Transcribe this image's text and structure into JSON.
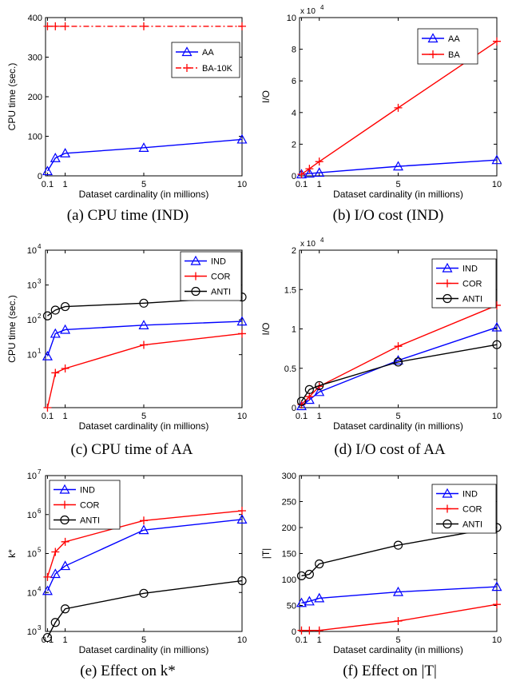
{
  "colors": {
    "AA": "#0000ff",
    "IND": "#0000ff",
    "BA": "#ff0000",
    "BA-10K": "#ff0000",
    "COR": "#ff0000",
    "ANTI": "#000000"
  },
  "chart_data": [
    {
      "id": "a",
      "type": "line",
      "caption": "(a) CPU time (IND)",
      "xlabel": "Dataset cardinality (in millions)",
      "ylabel": "CPU time (sec.)",
      "xlim": [
        0,
        10
      ],
      "ylim": [
        0,
        400
      ],
      "yscale": "linear",
      "xticks": [
        0.1,
        1,
        5,
        10
      ],
      "xtick_labels": [
        "0.1",
        "1",
        "5",
        "10"
      ],
      "yticks": [
        0,
        100,
        200,
        300,
        400
      ],
      "ytick_labels": [
        "0",
        "100",
        "200",
        "300",
        "400"
      ],
      "legend_position": "top-right",
      "series": [
        {
          "name": "AA",
          "color": "#0000ff",
          "marker": "triangle",
          "dash": "solid",
          "x": [
            0.1,
            0.5,
            1,
            5,
            10
          ],
          "y": [
            12,
            45,
            57,
            71,
            92
          ]
        },
        {
          "name": "BA-10K",
          "color": "#ff0000",
          "marker": "plus",
          "dash": "dashdot",
          "x": [
            0.1,
            0.5,
            1,
            5,
            10
          ],
          "y": [
            378,
            378,
            378,
            378,
            378
          ]
        }
      ]
    },
    {
      "id": "b",
      "type": "line",
      "caption": "(b) I/O cost (IND)",
      "xlabel": "Dataset cardinality (in millions)",
      "ylabel": "I/O",
      "exponent_label": "x 10",
      "exponent_power": "4",
      "xlim": [
        0,
        10
      ],
      "ylim": [
        0,
        10
      ],
      "yscale": "linear",
      "xticks": [
        0.1,
        1,
        5,
        10
      ],
      "xtick_labels": [
        "0.1",
        "1",
        "5",
        "10"
      ],
      "yticks": [
        0,
        2,
        4,
        6,
        8,
        10
      ],
      "ytick_labels": [
        "0",
        "2",
        "4",
        "6",
        "8",
        "10"
      ],
      "legend_position": "top-right",
      "series": [
        {
          "name": "AA",
          "color": "#0000ff",
          "marker": "triangle",
          "dash": "solid",
          "x": [
            0.1,
            0.5,
            1,
            5,
            10
          ],
          "y": [
            0.1,
            0.15,
            0.2,
            0.6,
            1.0
          ]
        },
        {
          "name": "BA",
          "color": "#ff0000",
          "marker": "plus",
          "dash": "solid",
          "x": [
            0.1,
            0.5,
            1,
            5,
            10
          ],
          "y": [
            0.1,
            0.45,
            0.9,
            4.3,
            8.5
          ]
        }
      ]
    },
    {
      "id": "c",
      "type": "line",
      "caption": "(c) CPU time of AA",
      "xlabel": "Dataset cardinality (in millions)",
      "ylabel": "CPU time (sec.)",
      "xlim": [
        0,
        10
      ],
      "ylim": [
        0.3,
        10000
      ],
      "yscale": "log",
      "xticks": [
        0.1,
        1,
        5,
        10
      ],
      "xtick_labels": [
        "0.1",
        "1",
        "5",
        "10"
      ],
      "yticks": [
        10,
        100,
        1000,
        10000
      ],
      "ytick_base": [
        "10",
        "10",
        "10",
        "10"
      ],
      "ytick_exp": [
        "1",
        "2",
        "3",
        "4"
      ],
      "legend_position": "top-right",
      "series": [
        {
          "name": "IND",
          "color": "#0000ff",
          "marker": "triangle",
          "dash": "solid",
          "x": [
            0.1,
            0.5,
            1,
            5,
            10
          ],
          "y": [
            9,
            40,
            52,
            70,
            90
          ]
        },
        {
          "name": "COR",
          "color": "#ff0000",
          "marker": "plus",
          "dash": "solid",
          "x": [
            0.1,
            0.5,
            1,
            5,
            10
          ],
          "y": [
            0.3,
            3,
            4,
            19,
            40
          ]
        },
        {
          "name": "ANTI",
          "color": "#000000",
          "marker": "circle",
          "dash": "solid",
          "x": [
            0.1,
            0.5,
            1,
            5,
            10
          ],
          "y": [
            130,
            190,
            240,
            300,
            450
          ]
        }
      ]
    },
    {
      "id": "d",
      "type": "line",
      "caption": "(d) I/O cost of AA",
      "xlabel": "Dataset cardinality (in millions)",
      "ylabel": "I/O",
      "exponent_label": "x 10",
      "exponent_power": "4",
      "xlim": [
        0,
        10
      ],
      "ylim": [
        0,
        2
      ],
      "yscale": "linear",
      "xticks": [
        0.1,
        1,
        5,
        10
      ],
      "xtick_labels": [
        "0.1",
        "1",
        "5",
        "10"
      ],
      "yticks": [
        0,
        0.5,
        1,
        1.5,
        2
      ],
      "ytick_labels": [
        "0",
        "0.5",
        "1",
        "1.5",
        "2"
      ],
      "legend_position": "top-right",
      "series": [
        {
          "name": "IND",
          "color": "#0000ff",
          "marker": "triangle",
          "dash": "solid",
          "x": [
            0.1,
            0.5,
            1,
            5,
            10
          ],
          "y": [
            0.02,
            0.1,
            0.2,
            0.6,
            1.02
          ]
        },
        {
          "name": "COR",
          "color": "#ff0000",
          "marker": "plus",
          "dash": "solid",
          "x": [
            0.1,
            0.5,
            1,
            5,
            10
          ],
          "y": [
            0.04,
            0.14,
            0.27,
            0.78,
            1.3
          ]
        },
        {
          "name": "ANTI",
          "color": "#000000",
          "marker": "circle",
          "dash": "solid",
          "x": [
            0.1,
            0.5,
            1,
            5,
            10
          ],
          "y": [
            0.08,
            0.23,
            0.28,
            0.58,
            0.8
          ]
        }
      ]
    },
    {
      "id": "e",
      "type": "line",
      "caption": "(e) Effect on k*",
      "xlabel": "Dataset cardinality (in millions)",
      "ylabel": "k*",
      "xlim": [
        0,
        10
      ],
      "ylim": [
        1000,
        10000000
      ],
      "yscale": "log",
      "xticks": [
        0.1,
        1,
        5,
        10
      ],
      "xtick_labels": [
        "0.1",
        "1",
        "5",
        "10"
      ],
      "yticks": [
        1000,
        10000,
        100000,
        1000000,
        10000000
      ],
      "ytick_base": [
        "10",
        "10",
        "10",
        "10",
        "10"
      ],
      "ytick_exp": [
        "3",
        "4",
        "5",
        "6",
        "7"
      ],
      "legend_position": "top-left",
      "series": [
        {
          "name": "IND",
          "color": "#0000ff",
          "marker": "triangle",
          "dash": "solid",
          "x": [
            0.1,
            0.5,
            1,
            5,
            10
          ],
          "y": [
            11000,
            30000,
            48000,
            400000,
            750000
          ]
        },
        {
          "name": "COR",
          "color": "#ff0000",
          "marker": "plus",
          "dash": "solid",
          "x": [
            0.1,
            0.5,
            1,
            5,
            10
          ],
          "y": [
            25000,
            110000,
            200000,
            700000,
            1250000
          ]
        },
        {
          "name": "ANTI",
          "color": "#000000",
          "marker": "circle",
          "dash": "solid",
          "x": [
            0.1,
            0.5,
            1,
            5,
            10
          ],
          "y": [
            700,
            1700,
            3800,
            9500,
            20000
          ]
        }
      ]
    },
    {
      "id": "f",
      "type": "line",
      "caption": "(f) Effect on |T|",
      "xlabel": "Dataset cardinality (in millions)",
      "ylabel": "|T|",
      "xlim": [
        0,
        10
      ],
      "ylim": [
        0,
        300
      ],
      "yscale": "linear",
      "xticks": [
        0.1,
        1,
        5,
        10
      ],
      "xtick_labels": [
        "0.1",
        "1",
        "5",
        "10"
      ],
      "yticks": [
        0,
        50,
        100,
        150,
        200,
        250,
        300
      ],
      "ytick_labels": [
        "0",
        "50",
        "100",
        "150",
        "200",
        "250",
        "300"
      ],
      "legend_position": "top-right",
      "series": [
        {
          "name": "IND",
          "color": "#0000ff",
          "marker": "triangle",
          "dash": "solid",
          "x": [
            0.1,
            0.5,
            1,
            5,
            10
          ],
          "y": [
            55,
            58,
            64,
            76,
            86
          ]
        },
        {
          "name": "COR",
          "color": "#ff0000",
          "marker": "plus",
          "dash": "solid",
          "x": [
            0.1,
            0.5,
            1,
            5,
            10
          ],
          "y": [
            2,
            2,
            2,
            20,
            52
          ]
        },
        {
          "name": "ANTI",
          "color": "#000000",
          "marker": "circle",
          "dash": "solid",
          "x": [
            0.1,
            0.5,
            1,
            5,
            10
          ],
          "y": [
            107,
            110,
            130,
            166,
            200
          ]
        }
      ]
    }
  ]
}
